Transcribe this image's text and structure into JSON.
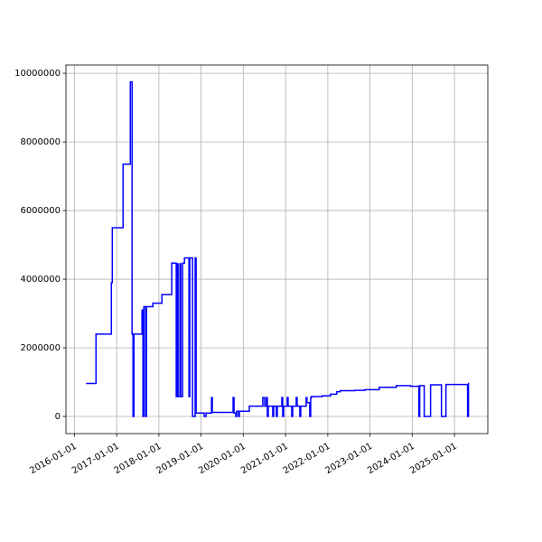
{
  "chart_data": {
    "type": "line",
    "drawstyle": "steps-post",
    "grid": true,
    "x": [
      "2016-04-11",
      "2016-07-06",
      "2016-11-16",
      "2016-11-24",
      "2017-02-25",
      "2017-04-29",
      "2017-05-14",
      "2017-05-22",
      "2017-05-30",
      "2017-08-08",
      "2017-08-16",
      "2017-08-24",
      "2017-09-08",
      "2017-09-16",
      "2017-11-10",
      "2018-01-27",
      "2018-04-22",
      "2018-05-31",
      "2018-06-08",
      "2018-06-16",
      "2018-07-02",
      "2018-07-09",
      "2018-07-25",
      "2018-08-10",
      "2018-09-18",
      "2018-09-25",
      "2018-10-19",
      "2018-11-11",
      "2018-11-19",
      "2019-01-28",
      "2019-02-13",
      "2019-04-01",
      "2019-04-08",
      "2019-10-05",
      "2019-10-13",
      "2019-10-28",
      "2019-11-05",
      "2019-11-21",
      "2019-11-28",
      "2020-02-22",
      "2020-06-18",
      "2020-07-04",
      "2020-07-19",
      "2020-07-27",
      "2020-08-04",
      "2020-09-12",
      "2020-09-20",
      "2020-10-13",
      "2020-10-21",
      "2020-11-29",
      "2020-12-07",
      "2020-12-15",
      "2021-01-15",
      "2021-01-23",
      "2021-02-23",
      "2021-03-03",
      "2021-04-03",
      "2021-04-11",
      "2021-05-04",
      "2021-05-12",
      "2021-06-28",
      "2021-07-05",
      "2021-07-29",
      "2021-08-06",
      "2021-08-13",
      "2021-11-15",
      "2022-01-24",
      "2022-03-20",
      "2022-04-20",
      "2022-08-23",
      "2022-11-17",
      "2023-03-21",
      "2023-08-17",
      "2023-12-19",
      "2024-02-28",
      "2024-03-06",
      "2024-04-14",
      "2024-06-08",
      "2024-09-10",
      "2024-10-19",
      "2025-04-24",
      "2025-05-02"
    ],
    "series": [
      {
        "color": "#0000ff",
        "values": [
          960000,
          2400000,
          3900000,
          5500000,
          7350000,
          9750000,
          2400000,
          0,
          2400000,
          3100000,
          0,
          3200000,
          0,
          3200000,
          3300000,
          3550000,
          4470000,
          580000,
          4450000,
          580000,
          4450000,
          580000,
          4470000,
          4620000,
          580000,
          4620000,
          0,
          4620000,
          100000,
          0,
          100000,
          550000,
          120000,
          550000,
          100000,
          0,
          150000,
          0,
          150000,
          300000,
          550000,
          300000,
          550000,
          0,
          300000,
          0,
          300000,
          0,
          300000,
          550000,
          0,
          300000,
          550000,
          300000,
          0,
          300000,
          550000,
          300000,
          0,
          300000,
          550000,
          400000,
          0,
          550000,
          580000,
          600000,
          650000,
          720000,
          750000,
          760000,
          780000,
          850000,
          900000,
          880000,
          0,
          900000,
          0,
          920000,
          0,
          930000,
          0,
          980000
        ]
      }
    ],
    "xlim": [
      "2015-10-20",
      "2025-10-16"
    ],
    "xticks": [
      "2016-01-01",
      "2017-01-01",
      "2018-01-01",
      "2019-01-01",
      "2020-01-01",
      "2021-01-01",
      "2022-01-01",
      "2023-01-01",
      "2024-01-01",
      "2025-01-01"
    ],
    "ylim": [
      -500000,
      10240000
    ],
    "yticks": [
      0,
      2000000,
      4000000,
      6000000,
      8000000,
      10000000
    ]
  }
}
